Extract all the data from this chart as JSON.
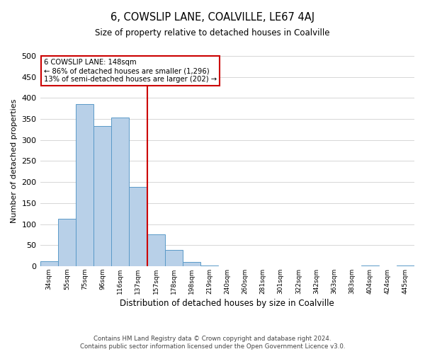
{
  "title": "6, COWSLIP LANE, COALVILLE, LE67 4AJ",
  "subtitle": "Size of property relative to detached houses in Coalville",
  "xlabel": "Distribution of detached houses by size in Coalville",
  "ylabel": "Number of detached properties",
  "bar_labels": [
    "34sqm",
    "55sqm",
    "75sqm",
    "96sqm",
    "116sqm",
    "137sqm",
    "157sqm",
    "178sqm",
    "198sqm",
    "219sqm",
    "240sqm",
    "260sqm",
    "281sqm",
    "301sqm",
    "322sqm",
    "342sqm",
    "363sqm",
    "383sqm",
    "404sqm",
    "424sqm",
    "445sqm"
  ],
  "bar_heights": [
    12,
    113,
    385,
    334,
    354,
    188,
    75,
    38,
    10,
    2,
    0,
    0,
    0,
    0,
    0,
    0,
    0,
    0,
    1,
    0,
    1
  ],
  "bar_color": "#b8d0e8",
  "bar_edge_color": "#5a9ac8",
  "property_line_x": 6,
  "property_line_label": "6 COWSLIP LANE: 148sqm",
  "annotation_line1": "← 86% of detached houses are smaller (1,296)",
  "annotation_line2": "13% of semi-detached houses are larger (202) →",
  "annotation_box_color": "#ffffff",
  "annotation_box_edge": "#cc0000",
  "line_color": "#cc0000",
  "ylim": [
    0,
    500
  ],
  "yticks": [
    0,
    50,
    100,
    150,
    200,
    250,
    300,
    350,
    400,
    450,
    500
  ],
  "footer1": "Contains HM Land Registry data © Crown copyright and database right 2024.",
  "footer2": "Contains public sector information licensed under the Open Government Licence v3.0.",
  "background_color": "#ffffff",
  "grid_color": "#d0d0d0"
}
